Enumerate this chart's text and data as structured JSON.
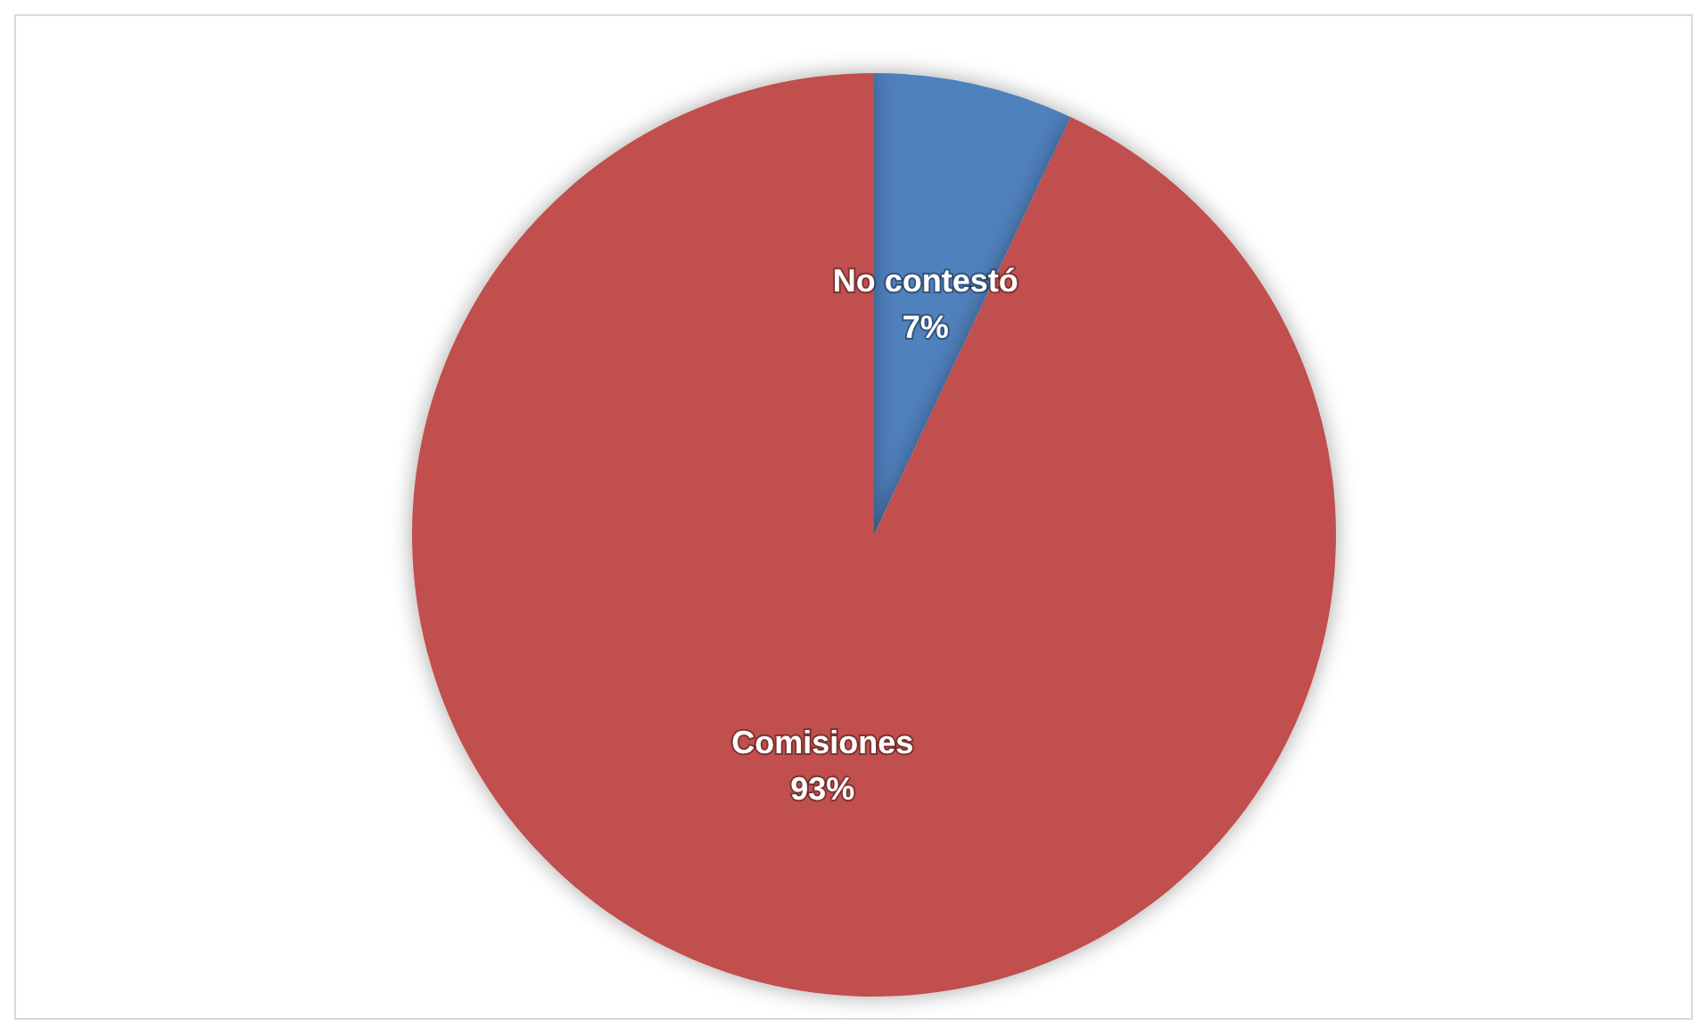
{
  "chart_data": {
    "type": "pie",
    "categories": [
      "No contestó",
      "Comisiones"
    ],
    "values": [
      7,
      93
    ],
    "colors": [
      "#4f81bd",
      "#c0504d"
    ],
    "value_labels": [
      "7%",
      "93%"
    ],
    "legend": false
  }
}
